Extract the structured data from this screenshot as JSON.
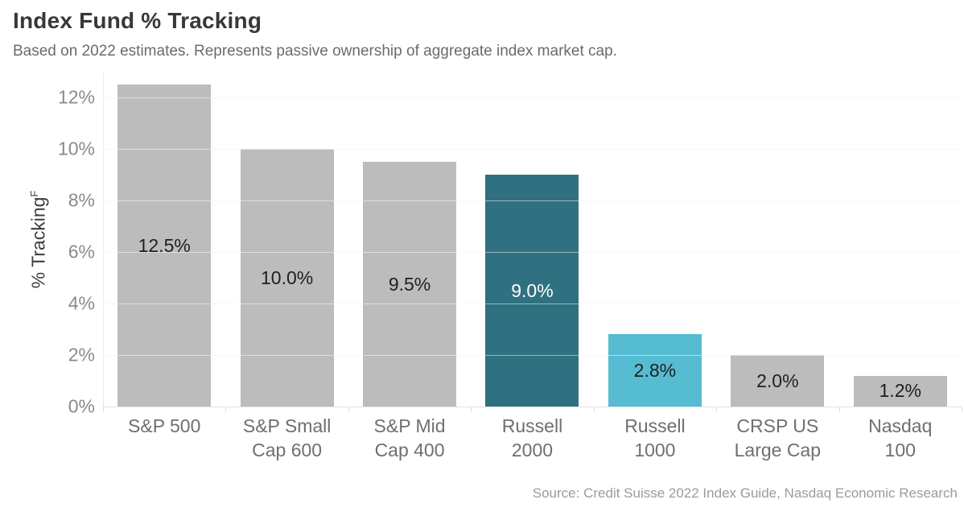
{
  "header": {
    "title": "Index Fund % Tracking",
    "subtitle": "Based on 2022 estimates. Represents passive ownership of aggregate index market cap."
  },
  "footer": {
    "source": "Source: Credit Suisse 2022 Index Guide, Nasdaq Economic Research"
  },
  "y_axis": {
    "label": "% Tracking",
    "footnote_marker": "F"
  },
  "chart_data": {
    "type": "bar",
    "title": "Index Fund % Tracking",
    "subtitle": "Based on 2022 estimates. Represents passive ownership of aggregate index market cap.",
    "source": "Source: Credit Suisse 2022 Index Guide, Nasdaq Economic Research",
    "categories": [
      "S&P 500",
      "S&P Small Cap 600",
      "S&P Mid Cap 400",
      "Russell 2000",
      "Russell 1000",
      "CRSP US Large Cap",
      "Nasdaq 100"
    ],
    "category_lines": [
      [
        "S&P 500",
        ""
      ],
      [
        "S&P Small",
        "Cap 600"
      ],
      [
        "S&P Mid",
        "Cap 400"
      ],
      [
        "Russell",
        "2000"
      ],
      [
        "Russell",
        "1000"
      ],
      [
        "CRSP US",
        "Large Cap"
      ],
      [
        "Nasdaq",
        "100"
      ]
    ],
    "values": [
      12.5,
      10.0,
      9.5,
      9.0,
      2.8,
      2.0,
      1.2
    ],
    "value_labels": [
      "12.5%",
      "10.0%",
      "9.5%",
      "9.0%",
      "2.8%",
      "2.0%",
      "1.2%"
    ],
    "bar_colors": [
      "#bcbcbc",
      "#bcbcbc",
      "#bcbcbc",
      "#2f7180",
      "#55bcd2",
      "#bcbcbc",
      "#bcbcbc"
    ],
    "value_label_colors": [
      "#202020",
      "#202020",
      "#202020",
      "#ffffff",
      "#202020",
      "#202020",
      "#202020"
    ],
    "ylabel": "% Tracking",
    "ylabel_footnote_marker": "F",
    "xlabel": "",
    "yticks": [
      {
        "label": "0%",
        "value": 0
      },
      {
        "label": "2%",
        "value": 2
      },
      {
        "label": "4%",
        "value": 4
      },
      {
        "label": "6%",
        "value": 6
      },
      {
        "label": "8%",
        "value": 8
      },
      {
        "label": "10%",
        "value": 10
      },
      {
        "label": "12%",
        "value": 12
      }
    ],
    "ylim": [
      0,
      12.97
    ],
    "grid": "horizontal gridlines every 2%, drawn over bars",
    "legend": "none",
    "colors": {
      "default_bar": "#bcbcbc",
      "highlight_dark_teal": "#2f7180",
      "highlight_light_cyan": "#55bcd2",
      "title_text": "#383838",
      "subtitle_text": "#6b6b6b",
      "axis_text": "#8a8a8a",
      "source_text": "#9b9b9b"
    }
  }
}
